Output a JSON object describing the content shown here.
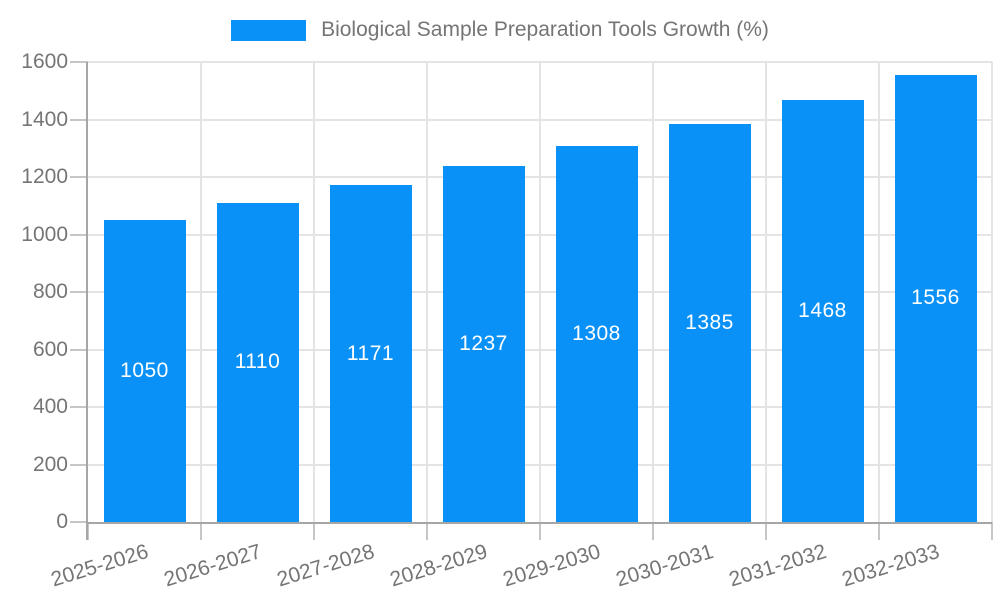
{
  "chart_data": {
    "type": "bar",
    "title": "",
    "categories": [
      "2025-2026",
      "2026-2027",
      "2027-2028",
      "2028-2029",
      "2029-2030",
      "2030-2031",
      "2031-2032",
      "2032-2033"
    ],
    "series": [
      {
        "name": "Biological Sample Preparation Tools Growth (%)",
        "values": [
          1050,
          1110,
          1171,
          1237,
          1308,
          1385,
          1468,
          1556
        ],
        "color": "#0991f8"
      }
    ],
    "xlabel": "",
    "ylabel": "",
    "ylim": [
      0,
      1600
    ],
    "yticks": [
      0,
      200,
      400,
      600,
      800,
      1000,
      1200,
      1400,
      1600
    ],
    "grid": true,
    "legend_position": "top-center",
    "value_labels_inside_bars": true
  },
  "colors": {
    "bar_label_text": "#ffffff",
    "axis_text": "#757575",
    "axis_line": "#a6a6a6",
    "tick_line": "#c6c6c6",
    "grid_line": "#e4e4e4",
    "background": "#ffffff"
  }
}
